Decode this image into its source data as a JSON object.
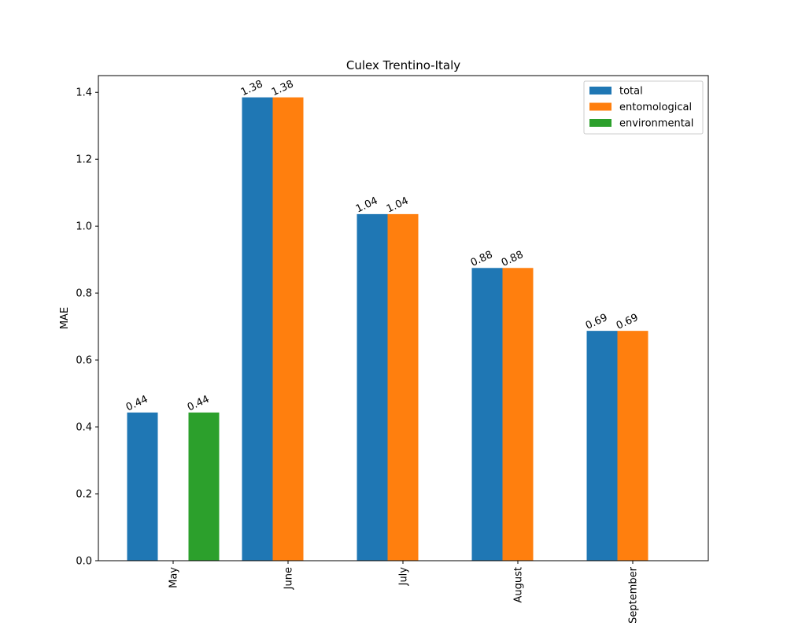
{
  "chart_data": {
    "type": "bar",
    "title": "Culex Trentino-Italy",
    "xlabel": "",
    "ylabel": "MAE",
    "categories": [
      "May",
      "June",
      "July",
      "August",
      "September"
    ],
    "ylim": [
      0,
      1.45
    ],
    "yticks": [
      "0.0",
      "0.2",
      "0.4",
      "0.6",
      "0.8",
      "1.0",
      "1.2",
      "1.4"
    ],
    "grid": false,
    "legend_position": "top-right",
    "series": [
      {
        "name": "total",
        "color": "#1f77b4",
        "values": [
          0.443,
          1.385,
          1.036,
          0.875,
          0.687
        ],
        "labels": [
          "0.44",
          "1.38",
          "1.04",
          "0.88",
          "0.69"
        ]
      },
      {
        "name": "entomological",
        "color": "#ff7f0e",
        "values": [
          null,
          1.385,
          1.036,
          0.875,
          0.687
        ],
        "labels": [
          null,
          "1.38",
          "1.04",
          "0.88",
          "0.69"
        ]
      },
      {
        "name": "environmental",
        "color": "#2ca02c",
        "values": [
          0.443,
          null,
          null,
          null,
          null
        ],
        "labels": [
          "0.44",
          null,
          null,
          null,
          null
        ]
      }
    ]
  }
}
